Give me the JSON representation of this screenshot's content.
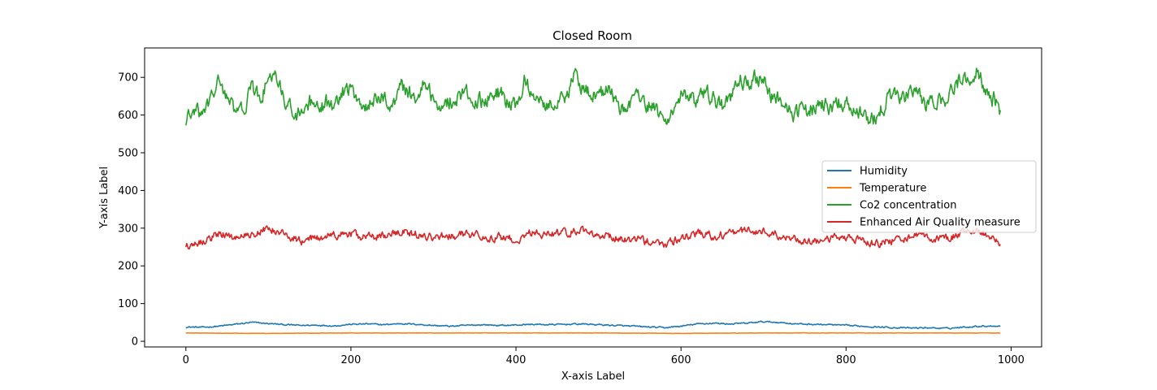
{
  "chart_data": {
    "type": "line",
    "title": "Closed Room",
    "xlabel": "X-axis Label",
    "ylabel": "Y-axis Label",
    "xlim": [
      -50,
      1037
    ],
    "ylim": [
      -15,
      778
    ],
    "xticks": [
      0,
      200,
      400,
      600,
      800,
      1000
    ],
    "yticks": [
      0,
      100,
      200,
      300,
      400,
      500,
      600,
      700
    ],
    "grid": false,
    "legend_position": "center-right",
    "n_points": 988,
    "series": [
      {
        "name": "Humidity",
        "color": "#1f77b4",
        "keyframes": [
          [
            0,
            38
          ],
          [
            20,
            37
          ],
          [
            40,
            40
          ],
          [
            60,
            45
          ],
          [
            80,
            50
          ],
          [
            100,
            47
          ],
          [
            120,
            44
          ],
          [
            140,
            42
          ],
          [
            160,
            43
          ],
          [
            180,
            41
          ],
          [
            200,
            45
          ],
          [
            220,
            46
          ],
          [
            240,
            44
          ],
          [
            260,
            47
          ],
          [
            280,
            45
          ],
          [
            300,
            42
          ],
          [
            320,
            40
          ],
          [
            340,
            42
          ],
          [
            360,
            44
          ],
          [
            380,
            42
          ],
          [
            400,
            43
          ],
          [
            420,
            45
          ],
          [
            440,
            44
          ],
          [
            460,
            45
          ],
          [
            480,
            46
          ],
          [
            500,
            44
          ],
          [
            520,
            42
          ],
          [
            540,
            40
          ],
          [
            560,
            38
          ],
          [
            580,
            36
          ],
          [
            600,
            40
          ],
          [
            620,
            46
          ],
          [
            640,
            48
          ],
          [
            660,
            46
          ],
          [
            680,
            48
          ],
          [
            700,
            52
          ],
          [
            720,
            50
          ],
          [
            740,
            46
          ],
          [
            760,
            45
          ],
          [
            780,
            44
          ],
          [
            800,
            42
          ],
          [
            820,
            40
          ],
          [
            840,
            38
          ],
          [
            860,
            36
          ],
          [
            880,
            35
          ],
          [
            900,
            36
          ],
          [
            920,
            34
          ],
          [
            940,
            37
          ],
          [
            960,
            40
          ],
          [
            987,
            41
          ]
        ],
        "noise": 1.5
      },
      {
        "name": "Temperature",
        "color": "#ff7f0e",
        "keyframes": [
          [
            0,
            22
          ],
          [
            100,
            21
          ],
          [
            200,
            22
          ],
          [
            300,
            22
          ],
          [
            400,
            22
          ],
          [
            500,
            22
          ],
          [
            600,
            21
          ],
          [
            700,
            22
          ],
          [
            800,
            22
          ],
          [
            900,
            22
          ],
          [
            987,
            22
          ]
        ],
        "noise": 0.3
      },
      {
        "name": "Co2 concentration",
        "color": "#2ca02c",
        "keyframes": [
          [
            0,
            585
          ],
          [
            10,
            610
          ],
          [
            20,
            600
          ],
          [
            30,
            640
          ],
          [
            40,
            690
          ],
          [
            50,
            650
          ],
          [
            60,
            600
          ],
          [
            70,
            620
          ],
          [
            80,
            670
          ],
          [
            90,
            640
          ],
          [
            100,
            700
          ],
          [
            110,
            690
          ],
          [
            120,
            640
          ],
          [
            130,
            610
          ],
          [
            140,
            600
          ],
          [
            150,
            630
          ],
          [
            160,
            610
          ],
          [
            170,
            630
          ],
          [
            180,
            620
          ],
          [
            190,
            660
          ],
          [
            200,
            670
          ],
          [
            210,
            640
          ],
          [
            220,
            620
          ],
          [
            230,
            640
          ],
          [
            240,
            650
          ],
          [
            250,
            620
          ],
          [
            260,
            680
          ],
          [
            270,
            660
          ],
          [
            280,
            650
          ],
          [
            290,
            690
          ],
          [
            300,
            640
          ],
          [
            310,
            620
          ],
          [
            320,
            640
          ],
          [
            330,
            650
          ],
          [
            340,
            660
          ],
          [
            350,
            630
          ],
          [
            360,
            640
          ],
          [
            370,
            650
          ],
          [
            380,
            660
          ],
          [
            390,
            630
          ],
          [
            400,
            620
          ],
          [
            410,
            690
          ],
          [
            420,
            660
          ],
          [
            430,
            640
          ],
          [
            440,
            630
          ],
          [
            450,
            640
          ],
          [
            460,
            650
          ],
          [
            470,
            700
          ],
          [
            480,
            680
          ],
          [
            490,
            660
          ],
          [
            500,
            650
          ],
          [
            510,
            670
          ],
          [
            520,
            640
          ],
          [
            530,
            610
          ],
          [
            540,
            640
          ],
          [
            550,
            650
          ],
          [
            560,
            630
          ],
          [
            570,
            610
          ],
          [
            580,
            580
          ],
          [
            590,
            620
          ],
          [
            600,
            650
          ],
          [
            610,
            640
          ],
          [
            620,
            630
          ],
          [
            630,
            660
          ],
          [
            640,
            640
          ],
          [
            650,
            620
          ],
          [
            660,
            640
          ],
          [
            670,
            690
          ],
          [
            680,
            680
          ],
          [
            690,
            700
          ],
          [
            700,
            690
          ],
          [
            710,
            650
          ],
          [
            720,
            640
          ],
          [
            730,
            620
          ],
          [
            740,
            600
          ],
          [
            750,
            610
          ],
          [
            760,
            620
          ],
          [
            770,
            630
          ],
          [
            780,
            620
          ],
          [
            790,
            630
          ],
          [
            800,
            640
          ],
          [
            810,
            610
          ],
          [
            820,
            600
          ],
          [
            830,
            580
          ],
          [
            840,
            610
          ],
          [
            850,
            640
          ],
          [
            860,
            650
          ],
          [
            870,
            640
          ],
          [
            880,
            670
          ],
          [
            890,
            640
          ],
          [
            900,
            620
          ],
          [
            910,
            640
          ],
          [
            920,
            630
          ],
          [
            930,
            670
          ],
          [
            940,
            700
          ],
          [
            950,
            690
          ],
          [
            960,
            720
          ],
          [
            970,
            660
          ],
          [
            980,
            640
          ],
          [
            987,
            605
          ]
        ],
        "noise": 18
      },
      {
        "name": "Enhanced Air Quality measure",
        "color": "#d62728",
        "keyframes": [
          [
            0,
            255
          ],
          [
            20,
            265
          ],
          [
            40,
            285
          ],
          [
            60,
            275
          ],
          [
            80,
            285
          ],
          [
            100,
            300
          ],
          [
            120,
            285
          ],
          [
            140,
            265
          ],
          [
            160,
            275
          ],
          [
            180,
            280
          ],
          [
            200,
            285
          ],
          [
            220,
            275
          ],
          [
            240,
            280
          ],
          [
            260,
            290
          ],
          [
            280,
            285
          ],
          [
            300,
            275
          ],
          [
            320,
            280
          ],
          [
            340,
            285
          ],
          [
            360,
            280
          ],
          [
            380,
            275
          ],
          [
            400,
            270
          ],
          [
            420,
            290
          ],
          [
            440,
            280
          ],
          [
            460,
            290
          ],
          [
            480,
            295
          ],
          [
            500,
            285
          ],
          [
            520,
            275
          ],
          [
            540,
            270
          ],
          [
            560,
            265
          ],
          [
            580,
            255
          ],
          [
            600,
            275
          ],
          [
            620,
            285
          ],
          [
            640,
            280
          ],
          [
            660,
            285
          ],
          [
            680,
            295
          ],
          [
            700,
            290
          ],
          [
            720,
            280
          ],
          [
            740,
            270
          ],
          [
            760,
            265
          ],
          [
            780,
            270
          ],
          [
            800,
            275
          ],
          [
            820,
            265
          ],
          [
            840,
            260
          ],
          [
            860,
            270
          ],
          [
            880,
            280
          ],
          [
            900,
            275
          ],
          [
            920,
            270
          ],
          [
            940,
            285
          ],
          [
            960,
            295
          ],
          [
            987,
            265
          ]
        ],
        "noise": 9
      }
    ]
  }
}
